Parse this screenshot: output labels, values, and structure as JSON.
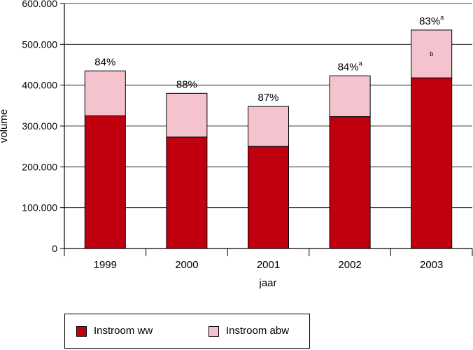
{
  "chart_data": {
    "type": "bar",
    "stacked": true,
    "categories": [
      "1999",
      "2000",
      "2001",
      "2002",
      "2003"
    ],
    "series": [
      {
        "name": "Instroom ww",
        "color": "#c0000f",
        "values": [
          325000,
          273000,
          250000,
          323000,
          418000
        ]
      },
      {
        "name": "Instroom abw",
        "color": "#f5c3cd",
        "values": [
          110000,
          107000,
          98000,
          100000,
          117000
        ]
      }
    ],
    "bar_labels": [
      "84%",
      "88%",
      "87%",
      "84%",
      "83%"
    ],
    "bar_label_superscripts": [
      "",
      "",
      "",
      "a",
      "a"
    ],
    "segment_notes": [
      {
        "category": "2003",
        "series": "Instroom abw",
        "text": "b"
      }
    ],
    "xlabel": "jaar",
    "ylabel": "volume",
    "ylim": [
      0,
      600000
    ],
    "yticks": [
      0,
      100000,
      200000,
      300000,
      400000,
      500000,
      600000
    ],
    "ytick_labels": [
      "0",
      "100.000",
      "200.000",
      "300.000",
      "400.000",
      "500.000",
      "600.000"
    ],
    "grid": true,
    "legend_position": "bottom-left"
  }
}
